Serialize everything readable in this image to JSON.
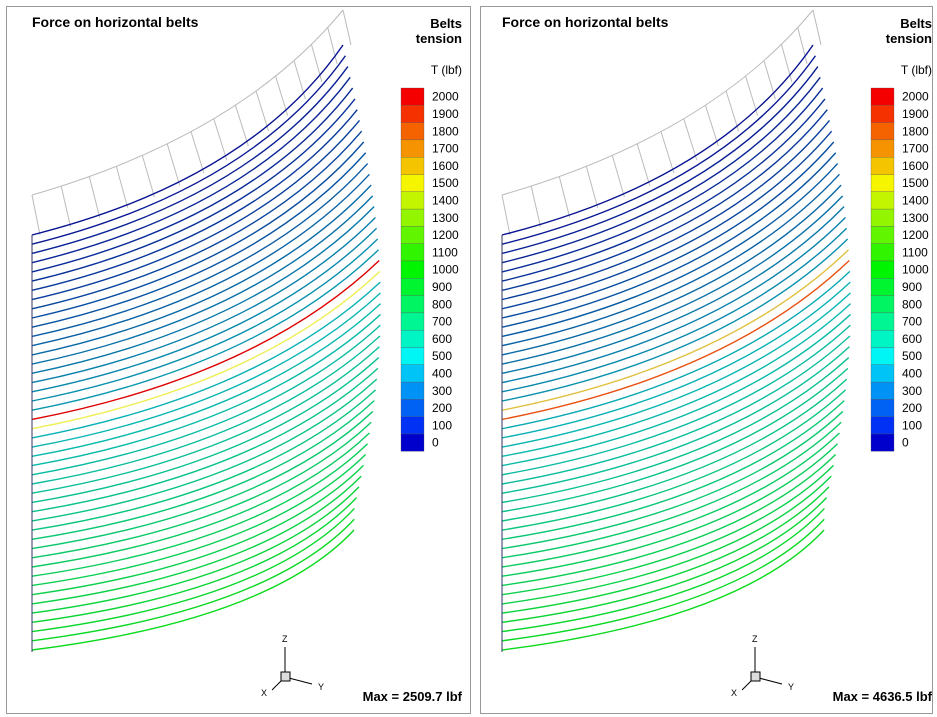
{
  "panels": [
    {
      "title": "Force on horizontal belts",
      "legend_title": [
        "Belts",
        "tension"
      ],
      "unit": "T (lbf)",
      "levels": [
        2000,
        1900,
        1800,
        1700,
        1600,
        1500,
        1400,
        1300,
        1200,
        1100,
        1000,
        900,
        800,
        700,
        600,
        500,
        400,
        300,
        200,
        100,
        0
      ],
      "axes": {
        "x": "X",
        "y": "Y",
        "z": "Z"
      },
      "max": "Max = 2509.7 lbf"
    },
    {
      "title": "Force on horizontal belts",
      "legend_title": [
        "Belts",
        "tension"
      ],
      "unit": "T (lbf)",
      "levels": [
        2000,
        1900,
        1800,
        1700,
        1600,
        1500,
        1400,
        1300,
        1200,
        1100,
        1000,
        900,
        800,
        700,
        600,
        500,
        400,
        300,
        200,
        100,
        0
      ],
      "axes": {
        "x": "X",
        "y": "Y",
        "z": "Z"
      },
      "max": "Max = 4636.5 lbf"
    }
  ]
}
